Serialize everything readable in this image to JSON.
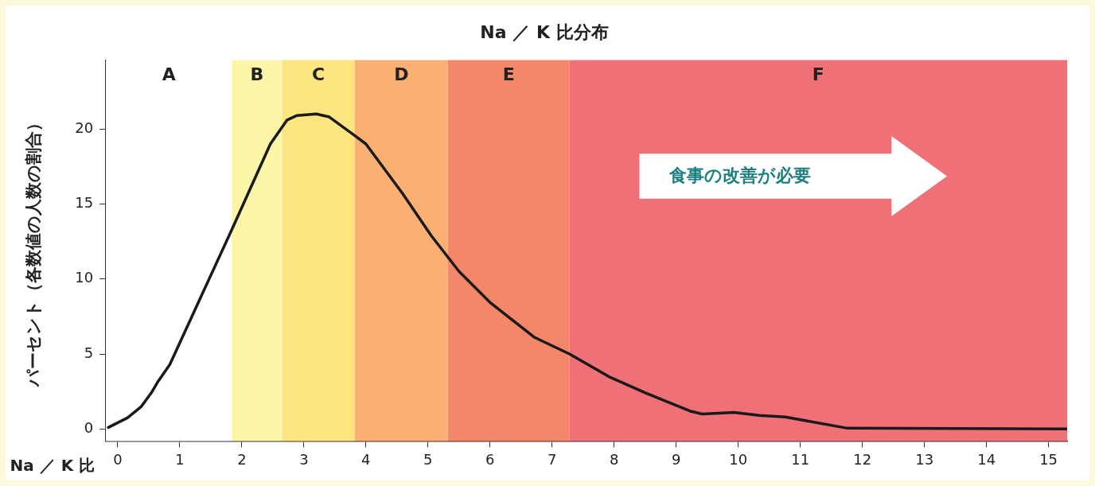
{
  "chart_data": {
    "type": "line",
    "title": "Na ／ K 比分布",
    "xlabel": "Na ／ K 比",
    "ylabel": "パーセント（各数値の人数の割合）",
    "x": [
      -0.15,
      0.16,
      0.38,
      0.54,
      0.64,
      0.84,
      1.84,
      2.46,
      2.73,
      2.89,
      3.2,
      3.41,
      3.84,
      4.0,
      4.59,
      5.05,
      5.5,
      6.01,
      6.72,
      7.28,
      7.91,
      8.51,
      9.22,
      9.42,
      9.93,
      10.34,
      10.76,
      11.76,
      15.3
    ],
    "series": [
      {
        "color": "#1a1a1a",
        "values": [
          0.1,
          0.75,
          1.5,
          2.4,
          3.1,
          4.3,
          13.3,
          19.0,
          20.6,
          20.9,
          21.0,
          20.8,
          19.5,
          19.0,
          15.7,
          12.9,
          10.5,
          8.4,
          6.1,
          5.0,
          3.5,
          2.4,
          1.2,
          1.0,
          1.1,
          0.9,
          0.8,
          0.05,
          0.0
        ]
      }
    ],
    "xlim": [
      -0.19,
      15.3
    ],
    "xticks": [
      0,
      1,
      2,
      3,
      4,
      5,
      6,
      7,
      8,
      9,
      10,
      11,
      12,
      13,
      14,
      15
    ],
    "ylim": [
      -0.8,
      24.6
    ],
    "yticks": [
      0,
      5,
      10,
      15,
      20
    ],
    "bands": [
      {
        "axis": "x",
        "from": -0.19,
        "to": 1.84,
        "label": "A",
        "color": "#ffffff"
      },
      {
        "axis": "x",
        "from": 1.84,
        "to": 2.65,
        "label": "B",
        "color": "#fdf5a8"
      },
      {
        "axis": "x",
        "from": 2.65,
        "to": 3.82,
        "label": "C",
        "color": "#fde680"
      },
      {
        "axis": "x",
        "from": 3.82,
        "to": 5.32,
        "label": "D",
        "color": "#f9b072"
      },
      {
        "axis": "x",
        "from": 5.32,
        "to": 7.28,
        "label": "E",
        "color": "#f4866a"
      },
      {
        "axis": "x",
        "from": 7.28,
        "to": 15.3,
        "label": "F",
        "color": "#f07078"
      }
    ],
    "annotations": [
      "食事の改善が必要"
    ],
    "grid": false,
    "legend": false,
    "marker": "none",
    "line_style": "solid"
  }
}
